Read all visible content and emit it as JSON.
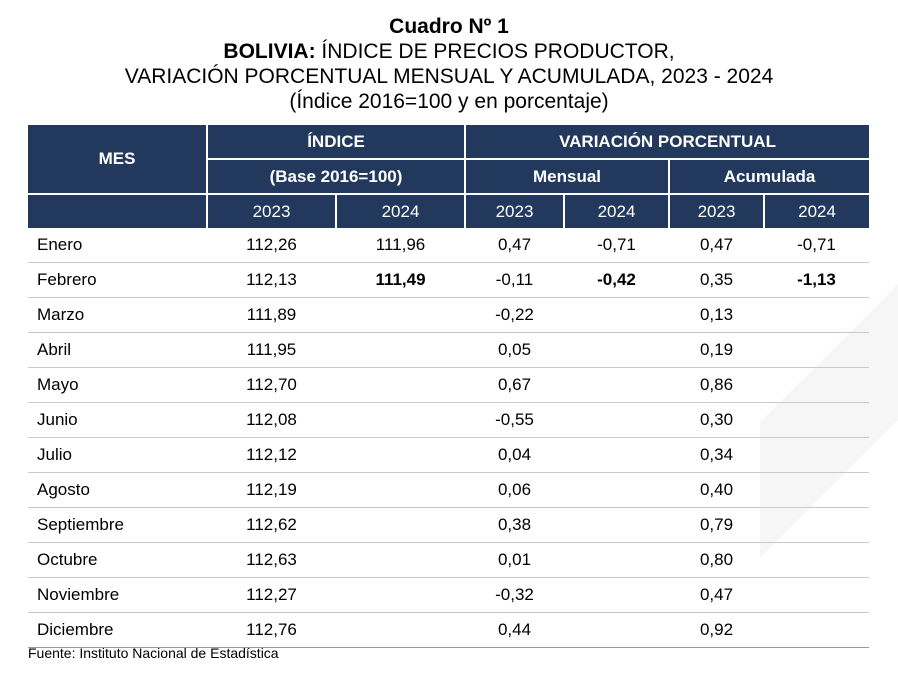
{
  "title": {
    "line1": "Cuadro Nº 1",
    "line2_bold": "BOLIVIA:",
    "line2_rest": " ÍNDICE DE PRECIOS PRODUCTOR,",
    "line3": "VARIACIÓN PORCENTUAL MENSUAL Y ACUMULADA, 2023 - 2024",
    "line4": "(Índice 2016=100 y en porcentaje)"
  },
  "header": {
    "mes": "MES",
    "indice": "ÍNDICE",
    "base": "(Base 2016=100)",
    "variacion": "VARIACIÓN PORCENTUAL",
    "mensual": "Mensual",
    "acumulada": "Acumulada",
    "years": [
      "2023",
      "2024",
      "2023",
      "2024",
      "2023",
      "2024"
    ]
  },
  "rows": [
    {
      "mes": "Enero",
      "indice_2023": "112,26",
      "indice_2024": "111,96",
      "mensual_2023": "0,47",
      "mensual_2024": "-0,71",
      "acumulada_2023": "0,47",
      "acumulada_2024": "-0,71"
    },
    {
      "mes": "Febrero",
      "indice_2023": "112,13",
      "indice_2024": "111,49",
      "mensual_2023": "-0,11",
      "mensual_2024": "-0,42",
      "acumulada_2023": "0,35",
      "acumulada_2024": "-1,13"
    },
    {
      "mes": "Marzo",
      "indice_2023": "111,89",
      "indice_2024": "",
      "mensual_2023": "-0,22",
      "mensual_2024": "",
      "acumulada_2023": "0,13",
      "acumulada_2024": ""
    },
    {
      "mes": "Abril",
      "indice_2023": "111,95",
      "indice_2024": "",
      "mensual_2023": "0,05",
      "mensual_2024": "",
      "acumulada_2023": "0,19",
      "acumulada_2024": ""
    },
    {
      "mes": "Mayo",
      "indice_2023": "112,70",
      "indice_2024": "",
      "mensual_2023": "0,67",
      "mensual_2024": "",
      "acumulada_2023": "0,86",
      "acumulada_2024": ""
    },
    {
      "mes": "Junio",
      "indice_2023": "112,08",
      "indice_2024": "",
      "mensual_2023": "-0,55",
      "mensual_2024": "",
      "acumulada_2023": "0,30",
      "acumulada_2024": ""
    },
    {
      "mes": "Julio",
      "indice_2023": "112,12",
      "indice_2024": "",
      "mensual_2023": "0,04",
      "mensual_2024": "",
      "acumulada_2023": "0,34",
      "acumulada_2024": ""
    },
    {
      "mes": "Agosto",
      "indice_2023": "112,19",
      "indice_2024": "",
      "mensual_2023": "0,06",
      "mensual_2024": "",
      "acumulada_2023": "0,40",
      "acumulada_2024": ""
    },
    {
      "mes": "Septiembre",
      "indice_2023": "112,62",
      "indice_2024": "",
      "mensual_2023": "0,38",
      "mensual_2024": "",
      "acumulada_2023": "0,79",
      "acumulada_2024": ""
    },
    {
      "mes": "Octubre",
      "indice_2023": "112,63",
      "indice_2024": "",
      "mensual_2023": "0,01",
      "mensual_2024": "",
      "acumulada_2023": "0,80",
      "acumulada_2024": ""
    },
    {
      "mes": "Noviembre",
      "indice_2023": "112,27",
      "indice_2024": "",
      "mensual_2023": "-0,32",
      "mensual_2024": "",
      "acumulada_2023": "0,47",
      "acumulada_2024": ""
    },
    {
      "mes": "Diciembre",
      "indice_2023": "112,76",
      "indice_2024": "",
      "mensual_2023": "0,44",
      "mensual_2024": "",
      "acumulada_2023": "0,92",
      "acumulada_2024": ""
    }
  ],
  "source": "Fuente: Instituto Nacional de Estadística",
  "colors": {
    "header_bg": "#22395d",
    "header_text": "#ffffff",
    "row_line": "#c9c9c9"
  }
}
